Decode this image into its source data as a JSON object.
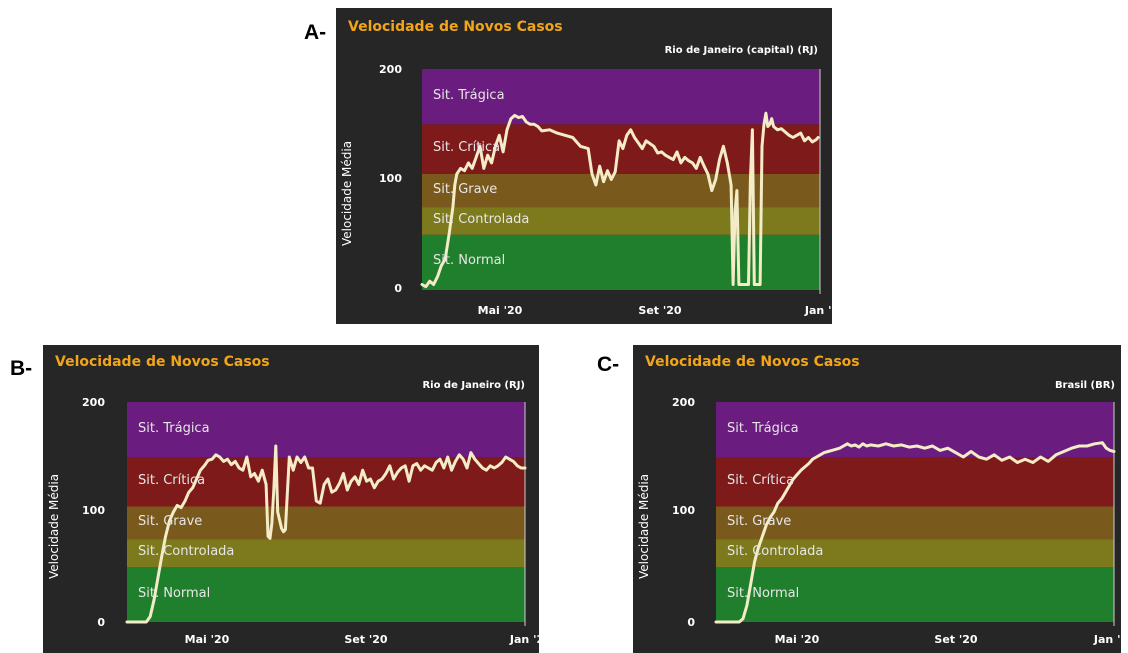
{
  "colors": {
    "background": "#262626",
    "title": "#f2a51a",
    "line": "#f3ecc6",
    "tragica": "#6a1c7f",
    "critica": "#7e1a1a",
    "grave": "#7a5a1c",
    "controlada": "#7d7a1e",
    "normal": "#1f7f2c"
  },
  "chart_data": [
    {
      "panel_label": "A-",
      "type": "line",
      "title": "Velocidade de Novos Casos",
      "subtitle": "Rio de Janeiro (capital) (RJ)",
      "ylabel": "Velocidade Média",
      "ylim": [
        0,
        200
      ],
      "yticks": [
        "0",
        "100",
        "200"
      ],
      "xticks": [
        {
          "label": "Mai '20",
          "x": 2.3
        },
        {
          "label": "Set '20",
          "x": 6.3
        },
        {
          "label": "Jan '2",
          "x": 10.3
        }
      ],
      "xlim": [
        0,
        10.3
      ],
      "bands": [
        {
          "label": "Sit. Normal",
          "from": 0,
          "to": 50
        },
        {
          "label": "Sit. Controlada",
          "from": 50,
          "to": 75
        },
        {
          "label": "Sit. Grave",
          "from": 75,
          "to": 105
        },
        {
          "label": "Sit. Crítica",
          "from": 105,
          "to": 150
        },
        {
          "label": "Sit. Trágica",
          "from": 150,
          "to": 200
        }
      ],
      "series": [
        {
          "x": [
            0.0,
            0.1,
            0.2,
            0.3,
            0.4,
            0.5,
            0.6,
            0.7,
            0.8,
            0.85,
            0.9,
            1.0,
            1.1,
            1.2,
            1.3,
            1.4,
            1.5,
            1.6,
            1.7,
            1.8,
            1.9,
            2.0,
            2.1,
            2.2,
            2.3,
            2.4,
            2.5,
            2.6,
            2.7,
            2.8,
            2.9,
            3.0,
            3.1,
            3.3,
            3.5,
            3.7,
            3.9,
            4.1,
            4.3,
            4.4,
            4.5,
            4.6,
            4.7,
            4.8,
            4.9,
            5.0,
            5.1,
            5.2,
            5.3,
            5.4,
            5.5,
            5.6,
            5.7,
            5.8,
            6.0,
            6.1,
            6.2,
            6.3,
            6.4,
            6.5,
            6.6,
            6.7,
            6.8,
            6.9,
            7.0,
            7.1,
            7.2,
            7.3,
            7.4,
            7.5,
            7.6,
            7.7,
            7.8,
            7.9,
            8.0,
            8.05,
            8.1,
            8.15,
            8.2,
            8.3,
            8.4,
            8.45,
            8.5,
            8.55,
            8.6,
            8.65,
            8.7,
            8.75,
            8.8,
            8.85,
            8.9,
            8.95,
            9.0,
            9.05,
            9.1,
            9.2,
            9.3,
            9.4,
            9.5,
            9.6,
            9.7,
            9.8,
            9.9,
            10.0,
            10.1,
            10.2,
            10.25
          ],
          "y": [
            5,
            3,
            8,
            5,
            12,
            22,
            28,
            50,
            75,
            95,
            105,
            110,
            108,
            115,
            110,
            120,
            130,
            110,
            122,
            115,
            130,
            140,
            125,
            145,
            155,
            158,
            156,
            157,
            152,
            150,
            150,
            148,
            144,
            145,
            142,
            140,
            138,
            130,
            128,
            105,
            95,
            112,
            98,
            108,
            100,
            107,
            135,
            128,
            140,
            145,
            138,
            133,
            128,
            135,
            130,
            124,
            125,
            122,
            120,
            118,
            125,
            115,
            120,
            117,
            115,
            110,
            120,
            112,
            105,
            90,
            100,
            118,
            130,
            115,
            95,
            5,
            70,
            90,
            5,
            5,
            5,
            5,
            100,
            145,
            5,
            5,
            5,
            5,
            130,
            150,
            160,
            148,
            150,
            155,
            148,
            145,
            146,
            143,
            140,
            138,
            140,
            142,
            135,
            138,
            134,
            136,
            138
          ]
        }
      ]
    },
    {
      "panel_label": "B-",
      "type": "line",
      "title": "Velocidade de Novos Casos",
      "subtitle": "Rio de Janeiro (RJ)",
      "ylabel": "Velocidade Média",
      "ylim": [
        0,
        200
      ],
      "yticks": [
        "0",
        "100",
        "200"
      ],
      "xticks": [
        {
          "label": "Mai '20",
          "x": 2.3
        },
        {
          "label": "Set '20",
          "x": 6.3
        },
        {
          "label": "Jan '2",
          "x": 10.3
        }
      ],
      "xlim": [
        0,
        10.3
      ],
      "bands": [
        {
          "label": "Sit. Normal",
          "from": 0,
          "to": 50
        },
        {
          "label": "Sit. Controlada",
          "from": 50,
          "to": 75
        },
        {
          "label": "Sit. Grave",
          "from": 75,
          "to": 105
        },
        {
          "label": "Sit. Crítica",
          "from": 105,
          "to": 150
        },
        {
          "label": "Sit. Trágica",
          "from": 150,
          "to": 200
        }
      ],
      "series": [
        {
          "x": [
            0.0,
            0.3,
            0.5,
            0.6,
            0.7,
            0.8,
            0.9,
            1.0,
            1.1,
            1.2,
            1.3,
            1.4,
            1.5,
            1.6,
            1.7,
            1.8,
            1.9,
            2.0,
            2.1,
            2.2,
            2.3,
            2.4,
            2.5,
            2.6,
            2.7,
            2.8,
            2.9,
            3.0,
            3.1,
            3.2,
            3.3,
            3.4,
            3.5,
            3.6,
            3.65,
            3.7,
            3.75,
            3.8,
            3.85,
            3.9,
            4.0,
            4.05,
            4.1,
            4.2,
            4.3,
            4.4,
            4.5,
            4.6,
            4.7,
            4.8,
            4.9,
            5.0,
            5.1,
            5.2,
            5.3,
            5.4,
            5.5,
            5.6,
            5.7,
            5.8,
            5.9,
            6.0,
            6.1,
            6.2,
            6.3,
            6.4,
            6.5,
            6.6,
            6.7,
            6.8,
            6.9,
            7.0,
            7.1,
            7.2,
            7.3,
            7.4,
            7.5,
            7.6,
            7.7,
            7.8,
            7.9,
            8.0,
            8.1,
            8.2,
            8.3,
            8.4,
            8.5,
            8.6,
            8.7,
            8.8,
            8.9,
            9.0,
            9.1,
            9.2,
            9.3,
            9.4,
            9.5,
            9.6,
            9.7,
            9.8,
            9.9,
            10.0,
            10.1,
            10.2,
            10.3
          ],
          "y": [
            0,
            0,
            0,
            5,
            20,
            40,
            60,
            78,
            92,
            100,
            106,
            104,
            110,
            118,
            122,
            130,
            138,
            142,
            147,
            148,
            152,
            150,
            146,
            148,
            143,
            146,
            140,
            138,
            150,
            132,
            135,
            128,
            138,
            125,
            78,
            76,
            90,
            120,
            160,
            100,
            85,
            82,
            84,
            150,
            138,
            150,
            145,
            150,
            140,
            140,
            110,
            108,
            125,
            130,
            118,
            120,
            126,
            135,
            120,
            128,
            132,
            125,
            138,
            128,
            130,
            122,
            128,
            130,
            135,
            142,
            130,
            136,
            140,
            142,
            128,
            142,
            144,
            138,
            142,
            140,
            138,
            145,
            148,
            140,
            150,
            138,
            146,
            152,
            148,
            140,
            154,
            148,
            144,
            140,
            138,
            142,
            140,
            142,
            145,
            150,
            148,
            146,
            142,
            140,
            140
          ]
        }
      ]
    },
    {
      "panel_label": "C-",
      "type": "line",
      "title": "Velocidade de Novos Casos",
      "subtitle": "Brasil (BR)",
      "ylabel": "Velocidade Média",
      "ylim": [
        0,
        200
      ],
      "yticks": [
        "0",
        "100",
        "200"
      ],
      "xticks": [
        {
          "label": "Mai '20",
          "x": 2.3
        },
        {
          "label": "Set '20",
          "x": 6.3
        },
        {
          "label": "Jan '2",
          "x": 10.3
        }
      ],
      "xlim": [
        0,
        10.3
      ],
      "bands": [
        {
          "label": "Sit. Normal",
          "from": 0,
          "to": 50
        },
        {
          "label": "Sit. Controlada",
          "from": 50,
          "to": 75
        },
        {
          "label": "Sit. Grave",
          "from": 75,
          "to": 105
        },
        {
          "label": "Sit. Crítica",
          "from": 105,
          "to": 150
        },
        {
          "label": "Sit. Trágica",
          "from": 150,
          "to": 200
        }
      ],
      "series": [
        {
          "x": [
            0.0,
            0.2,
            0.4,
            0.6,
            0.7,
            0.8,
            0.9,
            1.0,
            1.1,
            1.2,
            1.3,
            1.4,
            1.5,
            1.6,
            1.7,
            1.8,
            1.9,
            2.0,
            2.1,
            2.2,
            2.3,
            2.4,
            2.5,
            2.6,
            2.7,
            2.8,
            2.9,
            3.0,
            3.1,
            3.2,
            3.3,
            3.4,
            3.5,
            3.6,
            3.7,
            3.8,
            3.9,
            4.0,
            4.2,
            4.4,
            4.6,
            4.8,
            5.0,
            5.2,
            5.4,
            5.6,
            5.8,
            6.0,
            6.2,
            6.4,
            6.6,
            6.8,
            7.0,
            7.2,
            7.4,
            7.6,
            7.8,
            8.0,
            8.2,
            8.4,
            8.6,
            8.8,
            9.0,
            9.2,
            9.4,
            9.6,
            9.8,
            10.0,
            10.1,
            10.2,
            10.3
          ],
          "y": [
            0,
            0,
            0,
            0,
            3,
            15,
            35,
            55,
            68,
            78,
            88,
            95,
            100,
            108,
            112,
            118,
            124,
            130,
            134,
            138,
            141,
            144,
            148,
            150,
            152,
            154,
            155,
            156,
            157,
            158,
            160,
            162,
            160,
            161,
            159,
            162,
            160,
            161,
            160,
            162,
            160,
            161,
            159,
            160,
            158,
            160,
            156,
            158,
            154,
            150,
            155,
            150,
            148,
            152,
            147,
            150,
            145,
            148,
            145,
            150,
            146,
            152,
            155,
            158,
            160,
            160,
            162,
            163,
            158,
            156,
            155
          ]
        }
      ]
    }
  ]
}
